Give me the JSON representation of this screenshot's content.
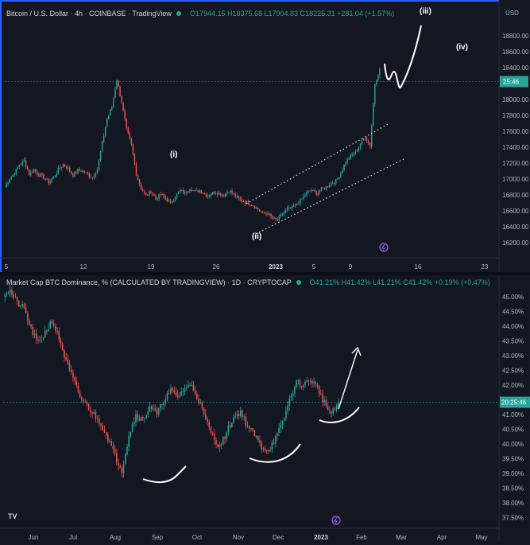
{
  "chart_data": [
    {
      "type": "candlestick",
      "title": "Bitcoin / U.S. Dollar · 4h · COINBASE · TradingView",
      "ohlc": "O17944.15 H18375.68 L17904.83 C18225.31 +281.04 (+1.57%)",
      "currency": "USD",
      "x_ticks": [
        "5",
        "12",
        "19",
        "26",
        "2023",
        "5",
        "9",
        "16",
        "23"
      ],
      "y_ticks": [
        16200,
        16400,
        16600,
        16800,
        17000,
        17200,
        17400,
        17600,
        17800,
        18000,
        18200,
        18400,
        18600,
        18800
      ],
      "ylim": [
        16050,
        18950
      ],
      "last_price_label": "25:46",
      "last_price": 18225,
      "wave_labels": [
        "(i)",
        "(ii)",
        "(iii)",
        "(iv)"
      ],
      "series": [
        16900,
        17010,
        17080,
        17180,
        17230,
        17060,
        17120,
        17050,
        17020,
        16960,
        17020,
        17120,
        17180,
        17130,
        17050,
        17110,
        17100,
        17060,
        17020,
        17120,
        17450,
        17750,
        17910,
        18250,
        17960,
        17620,
        17430,
        17060,
        16880,
        16790,
        16840,
        16750,
        16810,
        16760,
        16690,
        16780,
        16850,
        16820,
        16890,
        16840,
        16860,
        16810,
        16800,
        16840,
        16820,
        16800,
        16860,
        16800,
        16750,
        16720,
        16700,
        16670,
        16620,
        16560,
        16570,
        16500,
        16480,
        16560,
        16620,
        16640,
        16690,
        16750,
        16830,
        16860,
        16820,
        16870,
        16900,
        16950,
        16980,
        17080,
        17220,
        17280,
        17330,
        17440,
        17530,
        17420,
        18200,
        18380
      ]
    },
    {
      "type": "candlestick",
      "title": "Market Cap BTC Dominance, % (CALCULATED BY TRADINGVIEW) · 1D · CRYPTOCAP",
      "ohlc": "O41.21% H41.42% L41.21% C41.42% +0.19% (+0.47%)",
      "x_ticks": [
        "Jun",
        "Jul",
        "Aug",
        "Sep",
        "Oct",
        "Nov",
        "Dec",
        "2023",
        "Feb",
        "Mar",
        "Apr",
        "May"
      ],
      "y_ticks": [
        "37.50%",
        "38.00%",
        "38.50%",
        "39.00%",
        "39.50%",
        "40.00%",
        "40.50%",
        "41.00%",
        "41.50%",
        "42.00%",
        "42.50%",
        "43.00%",
        "43.50%",
        "44.00%",
        "44.50%",
        "45.00%"
      ],
      "ylim": [
        37.35,
        45.25
      ],
      "last_price_label": "20:25:46",
      "last_price": 41.42,
      "series": [
        45.1,
        45.2,
        44.8,
        44.6,
        43.9,
        43.4,
        43.8,
        44.2,
        43.6,
        42.8,
        42.2,
        41.6,
        41.3,
        41.0,
        40.7,
        40.2,
        39.6,
        39.1,
        40.3,
        41.0,
        40.8,
        41.3,
        41.0,
        41.5,
        41.8,
        41.6,
        41.9,
        42.0,
        41.5,
        40.8,
        40.3,
        39.9,
        40.4,
        40.9,
        41.1,
        40.6,
        40.3,
        39.9,
        39.8,
        40.2,
        40.7,
        41.5,
        42.1,
        42.0,
        42.2,
        41.9,
        41.4,
        41.0,
        41.4
      ]
    }
  ],
  "bottom_badge": "TV"
}
